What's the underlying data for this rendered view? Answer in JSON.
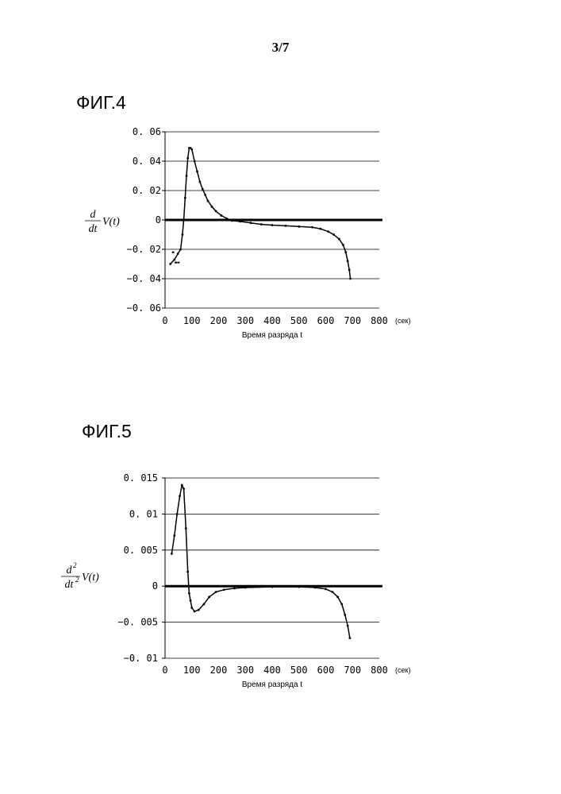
{
  "page": {
    "number": "3/7"
  },
  "chart_data": [
    {
      "type": "line",
      "title": "ФИГ.4",
      "xlabel": "Время разряда t",
      "x_unit": "(сек)",
      "ylabel": {
        "prefix_num": "d",
        "prefix_den": "dt",
        "body": "V(t)"
      },
      "xlim": [
        0,
        800
      ],
      "ylim": [
        -0.06,
        0.06
      ],
      "x_ticks": [
        0,
        100,
        200,
        300,
        400,
        500,
        600,
        700,
        800
      ],
      "y_ticks": [
        0.06,
        0.04,
        0.02,
        0,
        -0.02,
        -0.04,
        -0.06
      ],
      "y_tick_labels": [
        "0. 06",
        "0. 04",
        "0. 02",
        "0",
        "−0. 02",
        "−0. 04",
        "−0. 06"
      ],
      "grid": true,
      "zero_line": true,
      "series": [
        {
          "points": [
            [
              20,
              -0.03
            ],
            [
              35,
              -0.027
            ],
            [
              48,
              -0.023
            ],
            [
              58,
              -0.02
            ],
            [
              65,
              -0.01
            ],
            [
              70,
              0.0
            ],
            [
              75,
              0.015
            ],
            [
              80,
              0.03
            ],
            [
              85,
              0.042
            ],
            [
              90,
              0.049
            ],
            [
              95,
              0.049
            ],
            [
              100,
              0.048
            ],
            [
              110,
              0.04
            ],
            [
              120,
              0.033
            ],
            [
              130,
              0.026
            ],
            [
              140,
              0.021
            ],
            [
              150,
              0.017
            ],
            [
              160,
              0.013
            ],
            [
              175,
              0.009
            ],
            [
              190,
              0.006
            ],
            [
              210,
              0.003
            ],
            [
              230,
              0.001
            ],
            [
              250,
              -0.0005
            ],
            [
              280,
              -0.001
            ],
            [
              320,
              -0.002
            ],
            [
              360,
              -0.003
            ],
            [
              400,
              -0.0035
            ],
            [
              450,
              -0.004
            ],
            [
              500,
              -0.0045
            ],
            [
              550,
              -0.005
            ],
            [
              580,
              -0.006
            ],
            [
              610,
              -0.008
            ],
            [
              630,
              -0.01
            ],
            [
              650,
              -0.013
            ],
            [
              665,
              -0.017
            ],
            [
              675,
              -0.022
            ],
            [
              682,
              -0.028
            ],
            [
              688,
              -0.034
            ],
            [
              692,
              -0.04
            ]
          ],
          "scatter": [
            [
              30,
              -0.022
            ],
            [
              40,
              -0.029
            ],
            [
              50,
              -0.029
            ]
          ]
        }
      ]
    },
    {
      "type": "line",
      "title": "ФИГ.5",
      "xlabel": "Время разряда t",
      "x_unit": "(сек)",
      "ylabel": {
        "prefix_num": "d",
        "num_sup": "2",
        "prefix_den": "dt",
        "den_sup": "2",
        "body": "V(t)"
      },
      "xlim": [
        0,
        800
      ],
      "ylim": [
        -0.01,
        0.015
      ],
      "x_ticks": [
        0,
        100,
        200,
        300,
        400,
        500,
        600,
        700,
        800
      ],
      "y_ticks": [
        0.015,
        0.01,
        0.005,
        0,
        -0.005,
        -0.01
      ],
      "y_tick_labels": [
        "0. 015",
        "0. 01",
        "0. 005",
        "0",
        "−0. 005",
        "−0. 01"
      ],
      "grid": true,
      "zero_line": true,
      "series": [
        {
          "points": [
            [
              25,
              0.0045
            ],
            [
              35,
              0.007
            ],
            [
              45,
              0.01
            ],
            [
              55,
              0.0125
            ],
            [
              63,
              0.014
            ],
            [
              70,
              0.0135
            ],
            [
              78,
              0.008
            ],
            [
              85,
              0.002
            ],
            [
              90,
              -0.001
            ],
            [
              95,
              -0.002
            ],
            [
              100,
              -0.003
            ],
            [
              110,
              -0.0035
            ],
            [
              125,
              -0.0033
            ],
            [
              145,
              -0.0025
            ],
            [
              165,
              -0.0015
            ],
            [
              190,
              -0.0008
            ],
            [
              220,
              -0.0005
            ],
            [
              260,
              -0.0003
            ],
            [
              300,
              -0.0002
            ],
            [
              400,
              -0.0001
            ],
            [
              500,
              -0.0001
            ],
            [
              560,
              -0.0002
            ],
            [
              600,
              -0.0004
            ],
            [
              625,
              -0.0008
            ],
            [
              645,
              -0.0015
            ],
            [
              660,
              -0.0025
            ],
            [
              672,
              -0.004
            ],
            [
              682,
              -0.0055
            ],
            [
              690,
              -0.0072
            ]
          ],
          "scatter": []
        }
      ]
    }
  ]
}
